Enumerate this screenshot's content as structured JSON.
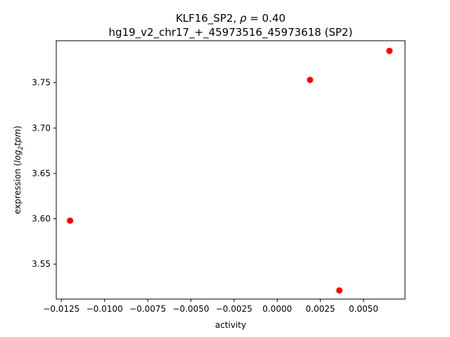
{
  "chart_data": {
    "type": "scatter",
    "title_line1_prefix": "KLF16_SP2, ",
    "title_rho_symbol": "ρ",
    "title_rho_value": " = 0.40",
    "title_line2": "hg19_v2_chr17_+_45973516_45973618 (SP2)",
    "xlabel": "activity",
    "ylabel_prefix": "expression (",
    "ylabel_log": "log",
    "ylabel_sub": "2",
    "ylabel_tpm": "tpm",
    "ylabel_suffix": ")",
    "xlim": [
      -0.0128,
      0.0074
    ],
    "ylim": [
      3.5115,
      3.7962
    ],
    "xticks": [
      -0.0125,
      -0.01,
      -0.0075,
      -0.005,
      -0.0025,
      0.0,
      0.0025,
      0.005
    ],
    "xtick_labels": [
      "−0.0125",
      "−0.0100",
      "−0.0075",
      "−0.0050",
      "−0.0025",
      "0.0000",
      "0.0025",
      "0.0050"
    ],
    "yticks": [
      3.55,
      3.6,
      3.65,
      3.7,
      3.75
    ],
    "ytick_labels": [
      "3.55",
      "3.60",
      "3.65",
      "3.70",
      "3.75"
    ],
    "points": [
      {
        "x": -0.012,
        "y": 3.598
      },
      {
        "x": 0.0019,
        "y": 3.753
      },
      {
        "x": 0.0036,
        "y": 3.521
      },
      {
        "x": 0.0065,
        "y": 3.785
      }
    ],
    "marker_color": "#ff0000",
    "grid": false
  }
}
